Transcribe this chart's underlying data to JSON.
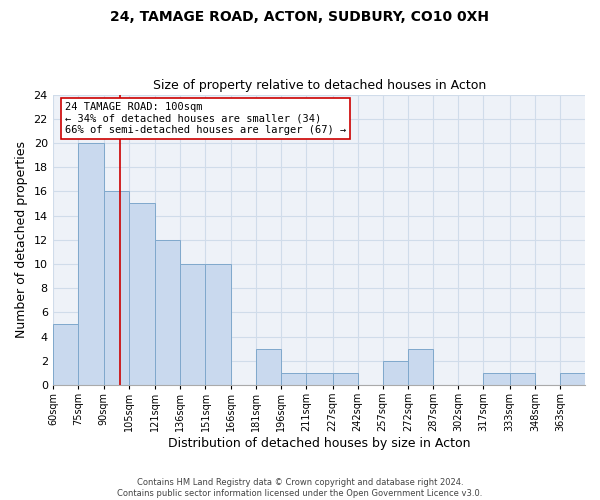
{
  "title": "24, TAMAGE ROAD, ACTON, SUDBURY, CO10 0XH",
  "subtitle": "Size of property relative to detached houses in Acton",
  "xlabel": "Distribution of detached houses by size in Acton",
  "ylabel": "Number of detached properties",
  "bar_edges": [
    60,
    75,
    90,
    105,
    121,
    136,
    151,
    166,
    181,
    196,
    211,
    227,
    242,
    257,
    272,
    287,
    302,
    317,
    333,
    348,
    363
  ],
  "bar_heights": [
    5,
    20,
    16,
    15,
    12,
    10,
    10,
    0,
    3,
    1,
    1,
    1,
    0,
    2,
    3,
    0,
    0,
    1,
    1,
    0,
    1
  ],
  "bar_color": "#c9d9ee",
  "bar_edge_color": "#7fa8cc",
  "grid_color": "#d0dcea",
  "vline_x": 100,
  "vline_color": "#cc0000",
  "annotation_title": "24 TAMAGE ROAD: 100sqm",
  "annotation_line1": "← 34% of detached houses are smaller (34)",
  "annotation_line2": "66% of semi-detached houses are larger (67) →",
  "annotation_box_color": "#ffffff",
  "annotation_box_edge": "#cc0000",
  "ylim": [
    0,
    24
  ],
  "yticks": [
    0,
    2,
    4,
    6,
    8,
    10,
    12,
    14,
    16,
    18,
    20,
    22,
    24
  ],
  "tick_labels": [
    "60sqm",
    "75sqm",
    "90sqm",
    "105sqm",
    "121sqm",
    "136sqm",
    "151sqm",
    "166sqm",
    "181sqm",
    "196sqm",
    "211sqm",
    "227sqm",
    "242sqm",
    "257sqm",
    "272sqm",
    "287sqm",
    "302sqm",
    "317sqm",
    "333sqm",
    "348sqm",
    "363sqm"
  ],
  "footer1": "Contains HM Land Registry data © Crown copyright and database right 2024.",
  "footer2": "Contains public sector information licensed under the Open Government Licence v3.0."
}
